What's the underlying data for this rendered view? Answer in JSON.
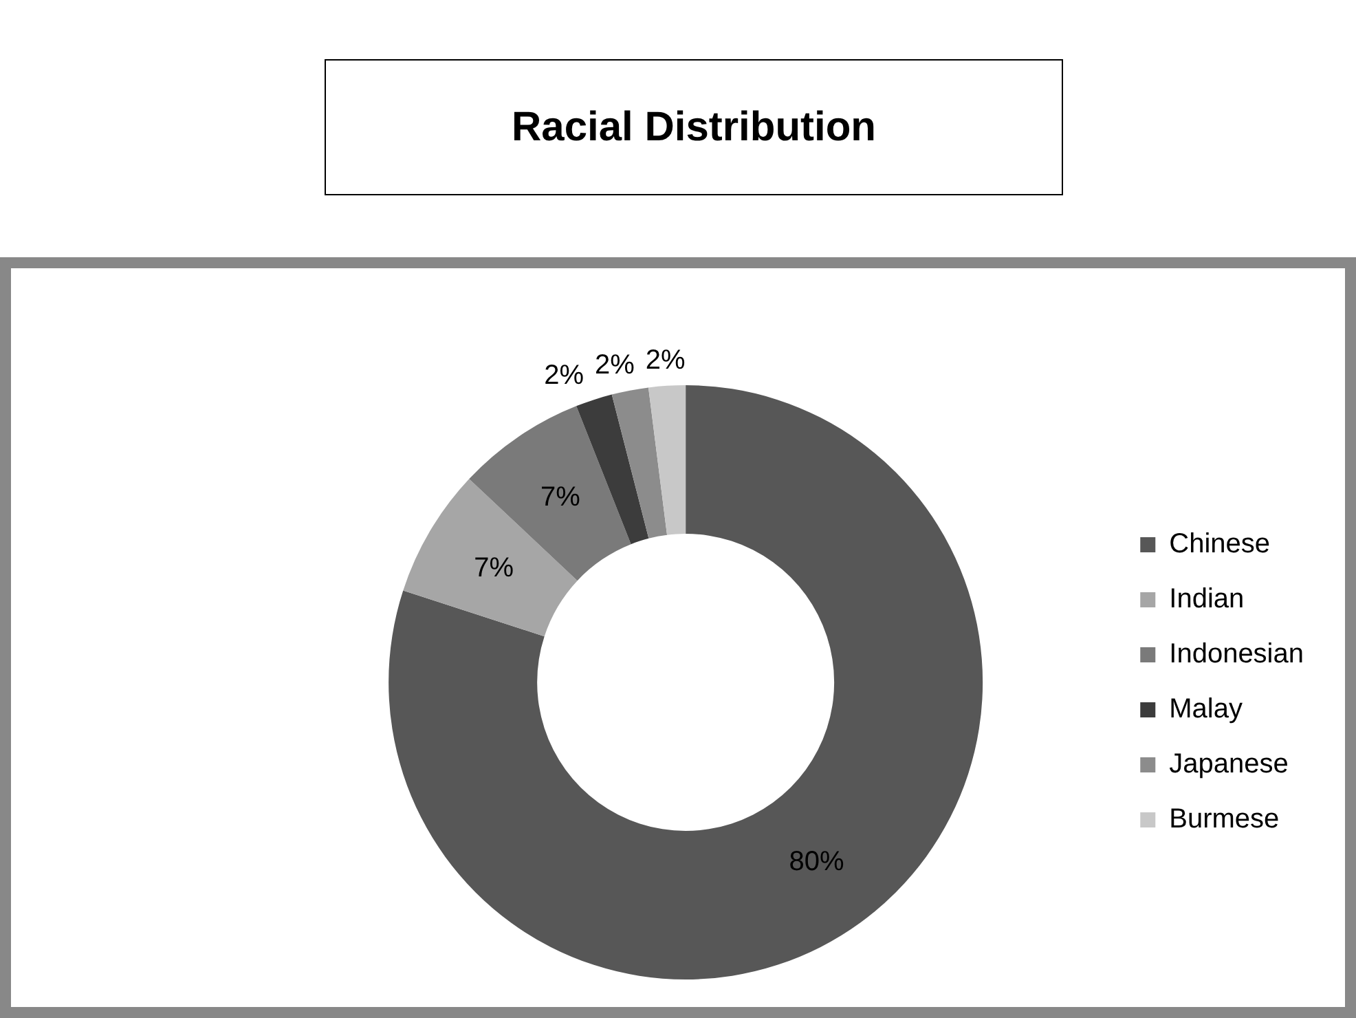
{
  "chart_data": {
    "type": "donut",
    "title": "Racial Distribution",
    "categories": [
      "Chinese",
      "Indian",
      "Indonesian",
      "Malay",
      "Japanese",
      "Burmese"
    ],
    "values": [
      80,
      7,
      7,
      2,
      2,
      2
    ],
    "colors": [
      "#575757",
      "#a6a6a6",
      "#7a7a7a",
      "#3c3c3c",
      "#8c8c8c",
      "#c8c8c8"
    ],
    "value_labels": [
      "80%",
      "7%",
      "7%",
      "2%",
      "2%",
      "2%"
    ],
    "legend": "right"
  }
}
